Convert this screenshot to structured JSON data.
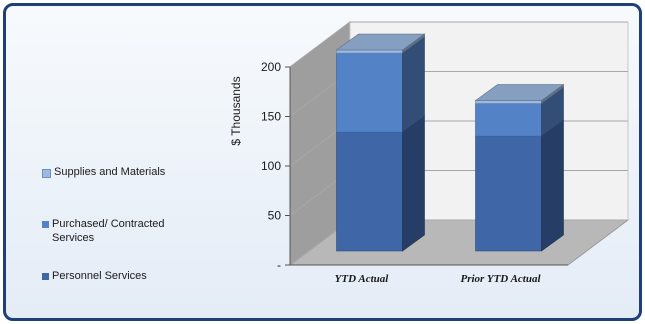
{
  "chart_data": {
    "type": "bar",
    "stacked": true,
    "three_d": true,
    "categories": [
      "YTD Actual",
      "Prior YTD Actual"
    ],
    "series": [
      {
        "name": "Personnel Services",
        "values": [
          120,
          116
        ],
        "color": "#3f67a8"
      },
      {
        "name": "Purchased/ Contracted Services",
        "values": [
          80,
          33
        ],
        "color": "#5382c7"
      },
      {
        "name": "Supplies and Materials",
        "values": [
          3,
          3
        ],
        "color": "#9cbbe3"
      }
    ],
    "ylabel": "$ Thousands",
    "ytick_labels": [
      "-",
      "50",
      "100",
      "150",
      "200"
    ],
    "yticks": [
      0,
      50,
      100,
      150,
      200
    ],
    "ylim": [
      0,
      200
    ],
    "grid": true,
    "legend_position": "left"
  }
}
